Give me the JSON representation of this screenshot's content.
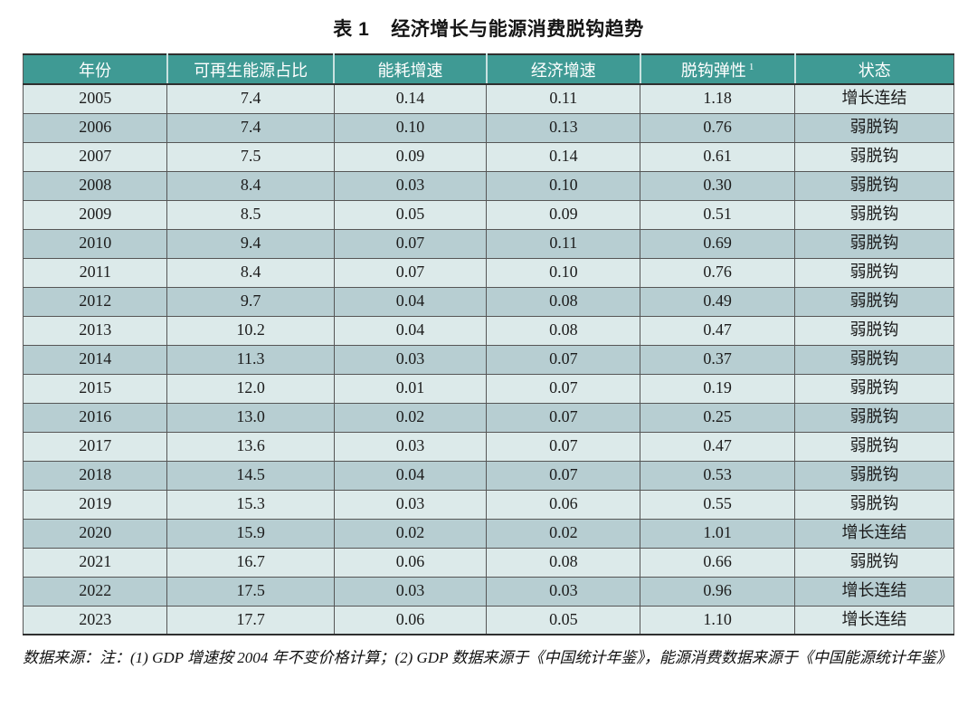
{
  "title": {
    "label": "表 1",
    "text": "经济增长与能源消费脱钩趋势"
  },
  "table": {
    "columns": [
      "年份",
      "可再生能源占比",
      "能耗增速",
      "经济增速",
      "脱钩弹性",
      "状态"
    ],
    "footnote_marker": "1",
    "rows": [
      {
        "year": "2005",
        "renewable_share": "7.4",
        "energy_growth": "0.14",
        "economic_growth": "0.11",
        "elasticity": "1.18",
        "status": "增长连结"
      },
      {
        "year": "2006",
        "renewable_share": "7.4",
        "energy_growth": "0.10",
        "economic_growth": "0.13",
        "elasticity": "0.76",
        "status": "弱脱钩"
      },
      {
        "year": "2007",
        "renewable_share": "7.5",
        "energy_growth": "0.09",
        "economic_growth": "0.14",
        "elasticity": "0.61",
        "status": "弱脱钩"
      },
      {
        "year": "2008",
        "renewable_share": "8.4",
        "energy_growth": "0.03",
        "economic_growth": "0.10",
        "elasticity": "0.30",
        "status": "弱脱钩"
      },
      {
        "year": "2009",
        "renewable_share": "8.5",
        "energy_growth": "0.05",
        "economic_growth": "0.09",
        "elasticity": "0.51",
        "status": "弱脱钩"
      },
      {
        "year": "2010",
        "renewable_share": "9.4",
        "energy_growth": "0.07",
        "economic_growth": "0.11",
        "elasticity": "0.69",
        "status": "弱脱钩"
      },
      {
        "year": "2011",
        "renewable_share": "8.4",
        "energy_growth": "0.07",
        "economic_growth": "0.10",
        "elasticity": "0.76",
        "status": "弱脱钩"
      },
      {
        "year": "2012",
        "renewable_share": "9.7",
        "energy_growth": "0.04",
        "economic_growth": "0.08",
        "elasticity": "0.49",
        "status": "弱脱钩"
      },
      {
        "year": "2013",
        "renewable_share": "10.2",
        "energy_growth": "0.04",
        "economic_growth": "0.08",
        "elasticity": "0.47",
        "status": "弱脱钩"
      },
      {
        "year": "2014",
        "renewable_share": "11.3",
        "energy_growth": "0.03",
        "economic_growth": "0.07",
        "elasticity": "0.37",
        "status": "弱脱钩"
      },
      {
        "year": "2015",
        "renewable_share": "12.0",
        "energy_growth": "0.01",
        "economic_growth": "0.07",
        "elasticity": "0.19",
        "status": "弱脱钩"
      },
      {
        "year": "2016",
        "renewable_share": "13.0",
        "energy_growth": "0.02",
        "economic_growth": "0.07",
        "elasticity": "0.25",
        "status": "弱脱钩"
      },
      {
        "year": "2017",
        "renewable_share": "13.6",
        "energy_growth": "0.03",
        "economic_growth": "0.07",
        "elasticity": "0.47",
        "status": "弱脱钩"
      },
      {
        "year": "2018",
        "renewable_share": "14.5",
        "energy_growth": "0.04",
        "economic_growth": "0.07",
        "elasticity": "0.53",
        "status": "弱脱钩"
      },
      {
        "year": "2019",
        "renewable_share": "15.3",
        "energy_growth": "0.03",
        "economic_growth": "0.06",
        "elasticity": "0.55",
        "status": "弱脱钩"
      },
      {
        "year": "2020",
        "renewable_share": "15.9",
        "energy_growth": "0.02",
        "economic_growth": "0.02",
        "elasticity": "1.01",
        "status": "增长连结"
      },
      {
        "year": "2021",
        "renewable_share": "16.7",
        "energy_growth": "0.06",
        "economic_growth": "0.08",
        "elasticity": "0.66",
        "status": "弱脱钩"
      },
      {
        "year": "2022",
        "renewable_share": "17.5",
        "energy_growth": "0.03",
        "economic_growth": "0.03",
        "elasticity": "0.96",
        "status": "增长连结"
      },
      {
        "year": "2023",
        "renewable_share": "17.7",
        "energy_growth": "0.06",
        "economic_growth": "0.05",
        "elasticity": "1.10",
        "status": "增长连结"
      }
    ]
  },
  "note": {
    "text": "数据来源：注：(1) GDP 增速按 2004 年不变价格计算；(2) GDP 数据来源于《中国统计年鉴》，能源消费数据来源于《中国能源统计年鉴》"
  },
  "colors": {
    "header_bg": "#3f9a94",
    "header_text": "#ffffff",
    "row_dark": "#b7ced2",
    "row_light": "#dceaea",
    "border_dark": "#2f2f2f",
    "grid_line": "#565656"
  }
}
